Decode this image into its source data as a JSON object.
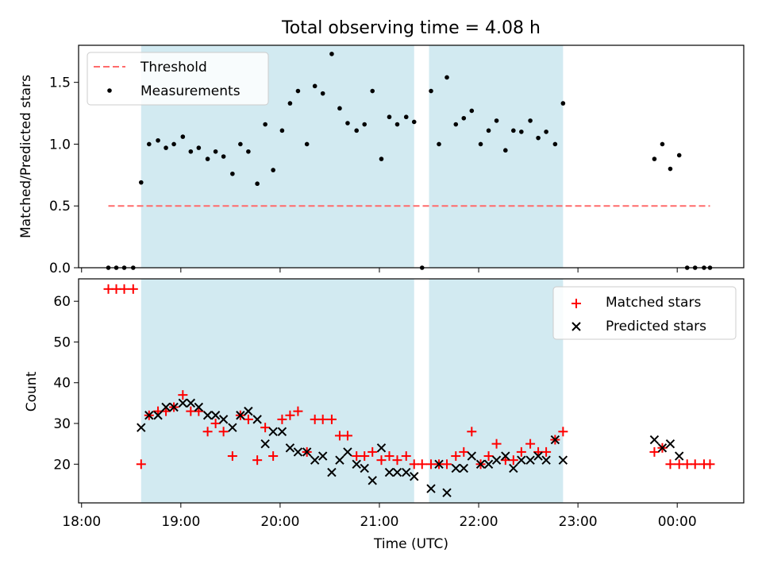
{
  "title": "Total observing time = 4.08 h",
  "x_axis": {
    "label": "Time (UTC)",
    "ticks": [
      "18:00",
      "19:00",
      "20:00",
      "21:00",
      "22:00",
      "23:00",
      "00:00"
    ],
    "tick_hours": [
      18,
      19,
      20,
      21,
      22,
      23,
      24
    ],
    "range_hours": [
      17.97,
      24.67
    ]
  },
  "colors": {
    "shade": "#add8e6",
    "threshold": "#ff6b6b",
    "matched": "#ff0000",
    "predicted": "#000000",
    "measurements": "#000000"
  },
  "chart_data": [
    {
      "type": "scatter",
      "ylabel": "Matched/Predicted stars",
      "ylim": [
        0,
        1.8
      ],
      "yticks": [
        "0.0",
        "0.5",
        "1.0",
        "1.5"
      ],
      "ytick_values": [
        0,
        0.5,
        1.0,
        1.5
      ],
      "shaded_intervals_hours": [
        [
          18.6,
          21.35
        ],
        [
          21.5,
          22.85
        ]
      ],
      "threshold": {
        "name": "Threshold",
        "value": 0.5,
        "x_range_hours": [
          18.27,
          24.33
        ]
      },
      "legend": {
        "placement": "top-left",
        "entries": [
          "Threshold",
          "Measurements"
        ]
      },
      "series": [
        {
          "name": "Measurements",
          "x": [
            18.27,
            18.35,
            18.43,
            18.52,
            18.6,
            18.68,
            18.77,
            18.85,
            18.93,
            19.02,
            19.1,
            19.18,
            19.27,
            19.35,
            19.43,
            19.52,
            19.6,
            19.68,
            19.77,
            19.85,
            19.93,
            20.02,
            20.1,
            20.18,
            20.27,
            20.35,
            20.43,
            20.52,
            20.6,
            20.68,
            20.77,
            20.85,
            20.93,
            21.02,
            21.1,
            21.18,
            21.27,
            21.35,
            21.43,
            21.52,
            21.6,
            21.68,
            21.77,
            21.85,
            21.93,
            22.02,
            22.1,
            22.18,
            22.27,
            22.35,
            22.43,
            22.52,
            22.6,
            22.68,
            22.77,
            22.85,
            23.77,
            23.85,
            23.93,
            24.02,
            24.1,
            24.18,
            24.27,
            24.33
          ],
          "y": [
            0,
            0,
            0,
            0,
            0.69,
            1.0,
            1.03,
            0.97,
            1.0,
            1.06,
            0.94,
            0.97,
            0.88,
            0.94,
            0.9,
            0.76,
            1.0,
            0.94,
            0.68,
            1.16,
            0.79,
            1.11,
            1.33,
            1.43,
            1.0,
            1.47,
            1.41,
            1.73,
            1.29,
            1.17,
            1.11,
            1.16,
            1.43,
            0.88,
            1.22,
            1.16,
            1.22,
            1.18,
            0,
            1.43,
            1.0,
            1.54,
            1.16,
            1.21,
            1.27,
            1.0,
            1.11,
            1.19,
            0.95,
            1.11,
            1.1,
            1.19,
            1.05,
            1.1,
            1.0,
            1.33,
            0.88,
            1.0,
            0.8,
            0.91,
            0,
            0,
            0,
            0
          ]
        }
      ]
    },
    {
      "type": "scatter",
      "ylabel": "Count",
      "xlabel": "Time (UTC)",
      "ylim": [
        10.5,
        65.5
      ],
      "yticks": [
        "20",
        "30",
        "40",
        "50",
        "60"
      ],
      "ytick_values": [
        20,
        30,
        40,
        50,
        60
      ],
      "shaded_intervals_hours": [
        [
          18.6,
          21.35
        ],
        [
          21.5,
          22.85
        ]
      ],
      "legend": {
        "placement": "top-right",
        "entries": [
          "Matched stars",
          "Predicted stars"
        ]
      },
      "series": [
        {
          "name": "Matched stars",
          "marker": "plus",
          "x": [
            18.27,
            18.35,
            18.43,
            18.52,
            18.6,
            18.68,
            18.77,
            18.85,
            18.93,
            19.02,
            19.1,
            19.18,
            19.27,
            19.35,
            19.43,
            19.52,
            19.6,
            19.68,
            19.77,
            19.85,
            19.93,
            20.02,
            20.1,
            20.18,
            20.27,
            20.35,
            20.43,
            20.52,
            20.6,
            20.68,
            20.77,
            20.85,
            20.93,
            21.02,
            21.1,
            21.18,
            21.27,
            21.35,
            21.43,
            21.52,
            21.6,
            21.68,
            21.77,
            21.85,
            21.93,
            22.02,
            22.1,
            22.18,
            22.27,
            22.35,
            22.43,
            22.52,
            22.6,
            22.68,
            22.77,
            22.85,
            23.77,
            23.85,
            23.93,
            24.02,
            24.1,
            24.18,
            24.27,
            24.33
          ],
          "y": [
            63,
            63,
            63,
            63,
            20,
            32,
            33,
            33,
            34,
            37,
            33,
            33,
            28,
            30,
            28,
            22,
            32,
            31,
            21,
            29,
            22,
            31,
            32,
            33,
            23,
            31,
            31,
            31,
            27,
            27,
            22,
            22,
            23,
            21,
            22,
            21,
            22,
            20,
            20,
            20,
            20,
            20,
            22,
            23,
            28,
            20,
            22,
            25,
            21,
            21,
            23,
            25,
            23,
            23,
            26,
            28,
            23,
            24,
            20,
            20,
            20,
            20,
            20,
            20
          ]
        },
        {
          "name": "Predicted stars",
          "marker": "x",
          "x": [
            18.6,
            18.68,
            18.77,
            18.85,
            18.93,
            19.02,
            19.1,
            19.18,
            19.27,
            19.35,
            19.43,
            19.52,
            19.6,
            19.68,
            19.77,
            19.85,
            19.93,
            20.02,
            20.1,
            20.18,
            20.27,
            20.35,
            20.43,
            20.52,
            20.6,
            20.68,
            20.77,
            20.85,
            20.93,
            21.02,
            21.1,
            21.18,
            21.27,
            21.35,
            21.52,
            21.6,
            21.68,
            21.77,
            21.85,
            21.93,
            22.02,
            22.1,
            22.18,
            22.27,
            22.35,
            22.43,
            22.52,
            22.6,
            22.68,
            22.77,
            22.85,
            23.77,
            23.85,
            23.93,
            24.02
          ],
          "y": [
            29,
            32,
            32,
            34,
            34,
            35,
            35,
            34,
            32,
            32,
            31,
            29,
            32,
            33,
            31,
            25,
            28,
            28,
            24,
            23,
            23,
            21,
            22,
            18,
            21,
            23,
            20,
            19,
            16,
            24,
            18,
            18,
            18,
            17,
            14,
            20,
            13,
            19,
            19,
            22,
            20,
            20,
            21,
            22,
            19,
            21,
            21,
            22,
            21,
            26,
            21,
            26,
            24,
            25,
            22
          ]
        }
      ]
    }
  ]
}
